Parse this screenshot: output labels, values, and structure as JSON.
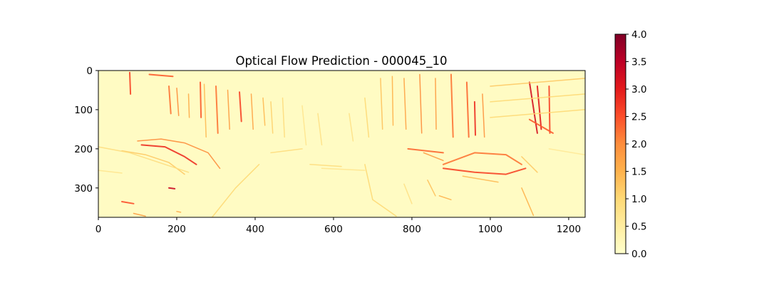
{
  "chart_data": {
    "type": "heatmap",
    "title": "Optical Flow Prediction - 000045_10",
    "xlabel": "",
    "ylabel": "",
    "xlim": [
      0,
      1242
    ],
    "ylim": [
      375,
      0
    ],
    "x_ticks": [
      0,
      200,
      400,
      600,
      800,
      1000,
      1200
    ],
    "y_ticks": [
      0,
      100,
      200,
      300
    ],
    "x_tick_labels": [
      "0",
      "200",
      "400",
      "600",
      "800",
      "1000",
      "1200"
    ],
    "y_tick_labels": [
      "0",
      "100",
      "200",
      "300"
    ],
    "colormap": "YlOrRd",
    "colormap_stops": [
      "#ffffcc",
      "#ffeda0",
      "#fed976",
      "#feb24c",
      "#fd8d3c",
      "#fc4e2a",
      "#e31a1c",
      "#bd0026",
      "#800026"
    ],
    "colorbar": {
      "range": [
        0.0,
        4.0
      ],
      "ticks": [
        0.0,
        0.5,
        1.0,
        1.5,
        2.0,
        2.5,
        3.0,
        3.5,
        4.0
      ],
      "tick_labels": [
        "0.0",
        "0.5",
        "1.0",
        "1.5",
        "2.0",
        "2.5",
        "3.0",
        "3.5",
        "4.0"
      ]
    },
    "grid": false,
    "features": [
      {
        "kind": "line",
        "pts": [
          [
            80,
            5
          ],
          [
            82,
            60
          ]
        ],
        "v": 2.6
      },
      {
        "kind": "line",
        "pts": [
          [
            130,
            10
          ],
          [
            190,
            15
          ]
        ],
        "v": 2.4
      },
      {
        "kind": "line",
        "pts": [
          [
            180,
            40
          ],
          [
            185,
            110
          ]
        ],
        "v": 2.2
      },
      {
        "kind": "line",
        "pts": [
          [
            200,
            45
          ],
          [
            205,
            115
          ]
        ],
        "v": 2.0
      },
      {
        "kind": "line",
        "pts": [
          [
            230,
            60
          ],
          [
            232,
            120
          ]
        ],
        "v": 1.6
      },
      {
        "kind": "line",
        "pts": [
          [
            260,
            30
          ],
          [
            262,
            120
          ]
        ],
        "v": 2.4
      },
      {
        "kind": "line",
        "pts": [
          [
            270,
            35
          ],
          [
            275,
            170
          ]
        ],
        "v": 1.4
      },
      {
        "kind": "line",
        "pts": [
          [
            300,
            40
          ],
          [
            305,
            160
          ]
        ],
        "v": 2.2
      },
      {
        "kind": "line",
        "pts": [
          [
            330,
            50
          ],
          [
            335,
            150
          ]
        ],
        "v": 1.8
      },
      {
        "kind": "line",
        "pts": [
          [
            360,
            55
          ],
          [
            365,
            130
          ]
        ],
        "v": 2.6
      },
      {
        "kind": "line",
        "pts": [
          [
            390,
            60
          ],
          [
            395,
            150
          ]
        ],
        "v": 1.7
      },
      {
        "kind": "line",
        "pts": [
          [
            420,
            70
          ],
          [
            425,
            140
          ]
        ],
        "v": 1.4
      },
      {
        "kind": "line",
        "pts": [
          [
            440,
            80
          ],
          [
            445,
            160
          ]
        ],
        "v": 1.1
      },
      {
        "kind": "line",
        "pts": [
          [
            470,
            70
          ],
          [
            475,
            170
          ]
        ],
        "v": 0.9
      },
      {
        "kind": "line",
        "pts": [
          [
            520,
            90
          ],
          [
            530,
            190
          ]
        ],
        "v": 0.7
      },
      {
        "kind": "line",
        "pts": [
          [
            560,
            110
          ],
          [
            570,
            190
          ]
        ],
        "v": 0.8
      },
      {
        "kind": "line",
        "pts": [
          [
            640,
            110
          ],
          [
            650,
            180
          ]
        ],
        "v": 0.8
      },
      {
        "kind": "line",
        "pts": [
          [
            680,
            70
          ],
          [
            690,
            170
          ]
        ],
        "v": 1.0
      },
      {
        "kind": "line",
        "pts": [
          [
            720,
            20
          ],
          [
            725,
            150
          ]
        ],
        "v": 1.3
      },
      {
        "kind": "line",
        "pts": [
          [
            750,
            15
          ],
          [
            752,
            140
          ]
        ],
        "v": 1.5
      },
      {
        "kind": "line",
        "pts": [
          [
            780,
            20
          ],
          [
            785,
            150
          ]
        ],
        "v": 1.7
      },
      {
        "kind": "line",
        "pts": [
          [
            820,
            10
          ],
          [
            825,
            160
          ]
        ],
        "v": 2.0
      },
      {
        "kind": "line",
        "pts": [
          [
            860,
            20
          ],
          [
            862,
            150
          ]
        ],
        "v": 1.8
      },
      {
        "kind": "line",
        "pts": [
          [
            900,
            10
          ],
          [
            905,
            170
          ]
        ],
        "v": 2.2
      },
      {
        "kind": "line",
        "pts": [
          [
            940,
            30
          ],
          [
            945,
            170
          ]
        ],
        "v": 2.3
      },
      {
        "kind": "line",
        "pts": [
          [
            960,
            80
          ],
          [
            962,
            165
          ]
        ],
        "v": 2.8
      },
      {
        "kind": "line",
        "pts": [
          [
            980,
            60
          ],
          [
            985,
            170
          ]
        ],
        "v": 1.9
      },
      {
        "kind": "line",
        "pts": [
          [
            1100,
            30
          ],
          [
            1120,
            160
          ]
        ],
        "v": 3.2
      },
      {
        "kind": "line",
        "pts": [
          [
            1120,
            40
          ],
          [
            1130,
            150
          ]
        ],
        "v": 3.0
      },
      {
        "kind": "line",
        "pts": [
          [
            1150,
            40
          ],
          [
            1152,
            160
          ]
        ],
        "v": 2.6
      },
      {
        "kind": "line",
        "pts": [
          [
            1000,
            40
          ],
          [
            1240,
            20
          ]
        ],
        "v": 1.2
      },
      {
        "kind": "line",
        "pts": [
          [
            1000,
            80
          ],
          [
            1240,
            60
          ]
        ],
        "v": 1.0
      },
      {
        "kind": "line",
        "pts": [
          [
            1000,
            120
          ],
          [
            1240,
            100
          ]
        ],
        "v": 1.0
      },
      {
        "kind": "line",
        "pts": [
          [
            1100,
            125
          ],
          [
            1160,
            160
          ]
        ],
        "v": 2.4
      },
      {
        "kind": "line",
        "pts": [
          [
            100,
            180
          ],
          [
            160,
            175
          ],
          [
            220,
            185
          ],
          [
            280,
            210
          ],
          [
            310,
            250
          ]
        ],
        "v": 2.0
      },
      {
        "kind": "line",
        "pts": [
          [
            110,
            190
          ],
          [
            170,
            195
          ],
          [
            220,
            220
          ],
          [
            250,
            240
          ]
        ],
        "v": 2.8
      },
      {
        "kind": "line",
        "pts": [
          [
            60,
            205
          ],
          [
            120,
            215
          ],
          [
            180,
            235
          ],
          [
            220,
            265
          ]
        ],
        "v": 1.2
      },
      {
        "kind": "line",
        "pts": [
          [
            0,
            195
          ],
          [
            80,
            210
          ],
          [
            140,
            230
          ],
          [
            230,
            260
          ]
        ],
        "v": 0.9
      },
      {
        "kind": "line",
        "pts": [
          [
            0,
            255
          ],
          [
            60,
            262
          ]
        ],
        "v": 0.7
      },
      {
        "kind": "line",
        "pts": [
          [
            180,
            300
          ],
          [
            195,
            302
          ]
        ],
        "v": 3.3
      },
      {
        "kind": "line",
        "pts": [
          [
            60,
            335
          ],
          [
            90,
            340
          ]
        ],
        "v": 2.5
      },
      {
        "kind": "line",
        "pts": [
          [
            90,
            365
          ],
          [
            120,
            372
          ]
        ],
        "v": 1.8
      },
      {
        "kind": "line",
        "pts": [
          [
            200,
            360
          ],
          [
            210,
            362
          ]
        ],
        "v": 1.6
      },
      {
        "kind": "line",
        "pts": [
          [
            290,
            375
          ],
          [
            350,
            300
          ],
          [
            410,
            240
          ]
        ],
        "v": 1.0
      },
      {
        "kind": "line",
        "pts": [
          [
            540,
            240
          ],
          [
            620,
            245
          ]
        ],
        "v": 0.9
      },
      {
        "kind": "line",
        "pts": [
          [
            570,
            250
          ],
          [
            680,
            255
          ]
        ],
        "v": 0.7
      },
      {
        "kind": "line",
        "pts": [
          [
            680,
            240
          ],
          [
            700,
            330
          ],
          [
            760,
            372
          ]
        ],
        "v": 1.0
      },
      {
        "kind": "line",
        "pts": [
          [
            790,
            200
          ],
          [
            880,
            210
          ]
        ],
        "v": 2.3
      },
      {
        "kind": "line",
        "pts": [
          [
            830,
            210
          ],
          [
            880,
            230
          ]
        ],
        "v": 1.8
      },
      {
        "kind": "line",
        "pts": [
          [
            880,
            240
          ],
          [
            960,
            210
          ],
          [
            1040,
            215
          ],
          [
            1080,
            240
          ]
        ],
        "v": 2.2
      },
      {
        "kind": "line",
        "pts": [
          [
            880,
            250
          ],
          [
            960,
            260
          ],
          [
            1040,
            265
          ],
          [
            1090,
            250
          ]
        ],
        "v": 2.6
      },
      {
        "kind": "line",
        "pts": [
          [
            930,
            270
          ],
          [
            1020,
            285
          ]
        ],
        "v": 1.4
      },
      {
        "kind": "line",
        "pts": [
          [
            1080,
            220
          ],
          [
            1120,
            260
          ]
        ],
        "v": 1.2
      },
      {
        "kind": "line",
        "pts": [
          [
            1080,
            300
          ],
          [
            1110,
            370
          ]
        ],
        "v": 1.5
      },
      {
        "kind": "line",
        "pts": [
          [
            1150,
            200
          ],
          [
            1240,
            215
          ]
        ],
        "v": 0.6
      },
      {
        "kind": "line",
        "pts": [
          [
            840,
            280
          ],
          [
            860,
            320
          ]
        ],
        "v": 1.3
      },
      {
        "kind": "line",
        "pts": [
          [
            870,
            320
          ],
          [
            900,
            330
          ]
        ],
        "v": 1.5
      },
      {
        "kind": "line",
        "pts": [
          [
            780,
            290
          ],
          [
            800,
            340
          ]
        ],
        "v": 0.8
      },
      {
        "kind": "line",
        "pts": [
          [
            440,
            210
          ],
          [
            520,
            200
          ]
        ],
        "v": 0.9
      }
    ]
  }
}
